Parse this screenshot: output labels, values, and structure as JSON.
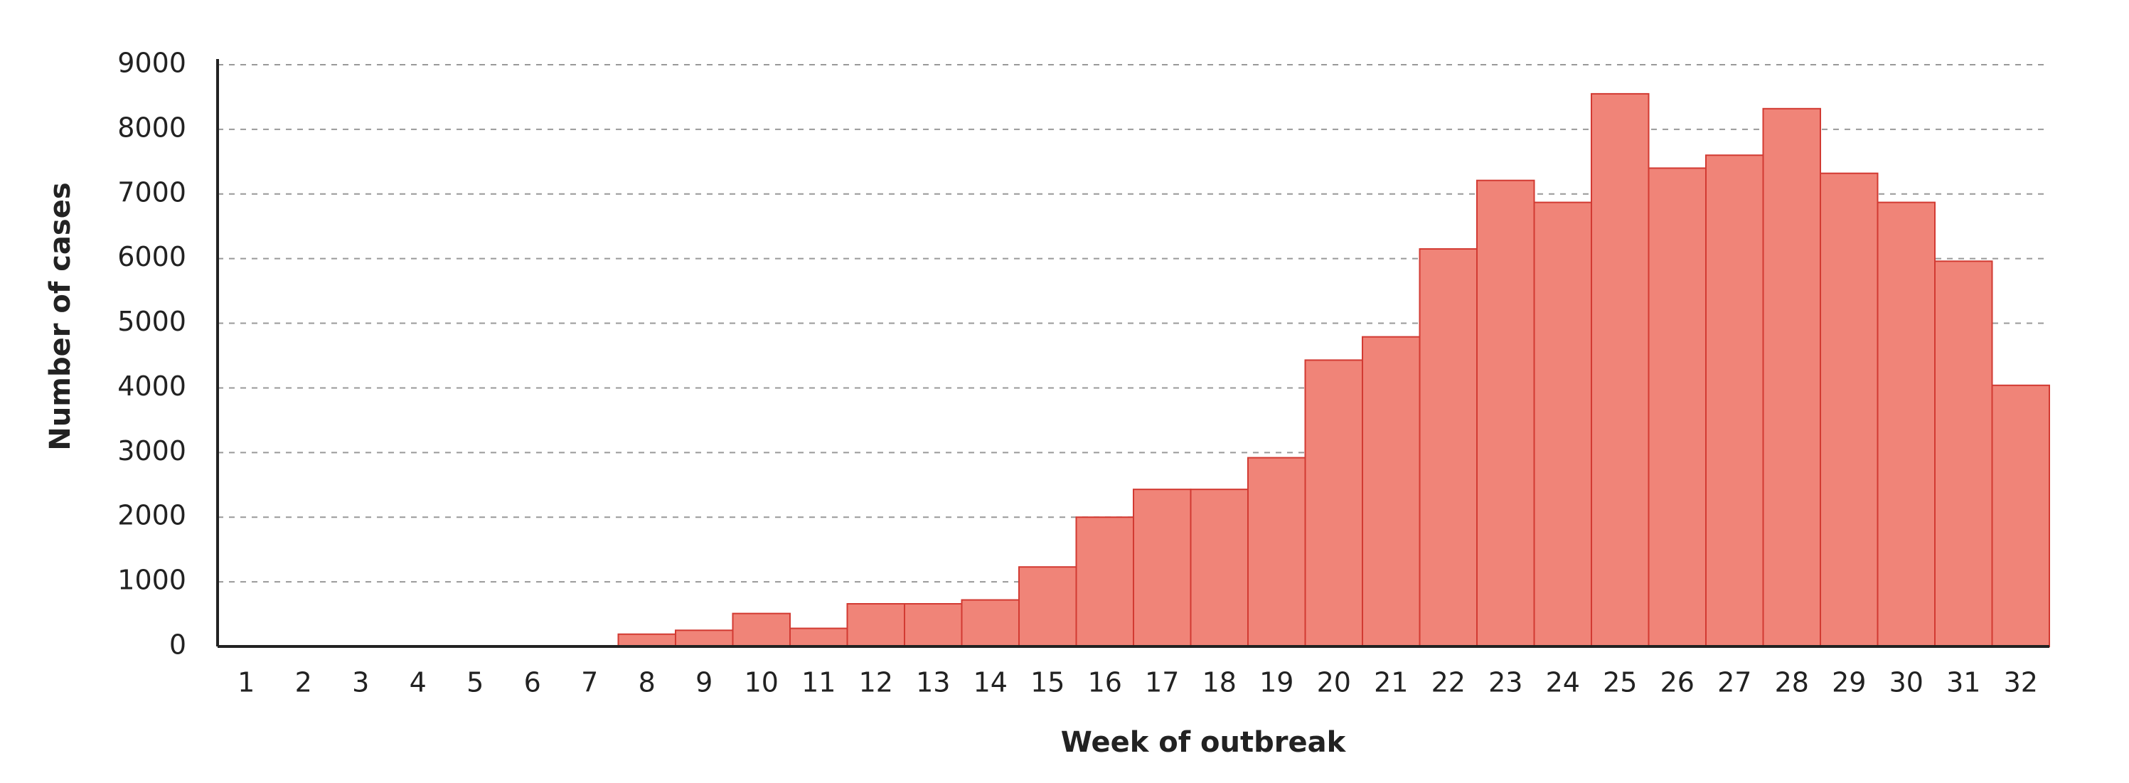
{
  "chart_data": {
    "type": "bar",
    "x_label": "Week of outbreak",
    "y_label": "Number of cases",
    "categories": [
      "1",
      "2",
      "3",
      "4",
      "5",
      "6",
      "7",
      "8",
      "9",
      "10",
      "11",
      "12",
      "13",
      "14",
      "15",
      "16",
      "17",
      "18",
      "19",
      "20",
      "21",
      "22",
      "23",
      "24",
      "25",
      "26",
      "27",
      "28",
      "29",
      "30",
      "31",
      "32"
    ],
    "values": [
      0,
      0,
      0,
      0,
      0,
      0,
      0,
      190,
      250,
      510,
      280,
      660,
      660,
      720,
      1230,
      2000,
      2430,
      2430,
      2920,
      4430,
      4790,
      6150,
      7210,
      6870,
      8550,
      7400,
      7600,
      8320,
      7320,
      6870,
      5960,
      4040
    ],
    "color": "#f08478",
    "ylim": [
      0,
      9000
    ],
    "yticks": [
      0,
      1000,
      2000,
      3000,
      4000,
      5000,
      6000,
      7000,
      8000,
      9000
    ],
    "grid": true
  }
}
